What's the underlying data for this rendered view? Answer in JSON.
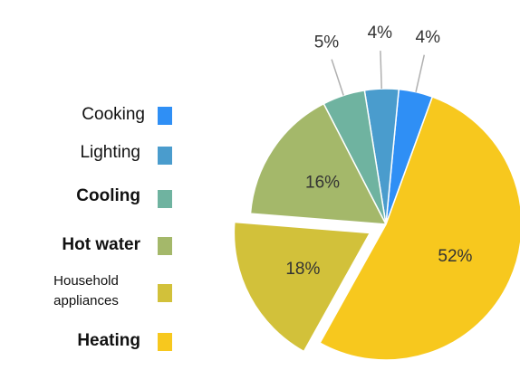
{
  "chart_data": {
    "type": "pie",
    "slices": [
      {
        "label": "Cooking",
        "value": 4,
        "value_label": "4%",
        "color": "#2f8ff5"
      },
      {
        "label": "Lighting",
        "value": 4,
        "value_label": "4%",
        "color": "#4a9ccd"
      },
      {
        "label": "Cooling",
        "value": 5,
        "value_label": "5%",
        "color": "#6fb3a0"
      },
      {
        "label": "Hot water",
        "value": 16,
        "value_label": "16%",
        "color": "#a4b86a"
      },
      {
        "label": "Household appliances",
        "value": 18,
        "value_label": "18%",
        "color": "#d2c13a"
      },
      {
        "label": "Heating",
        "value": 52,
        "value_label": "52%",
        "color": "#f7c81e"
      }
    ],
    "exploded": [
      "Household appliances"
    ],
    "legend_position": "left",
    "legend_bold": [
      "Cooling",
      "Hot water",
      "Heating"
    ]
  }
}
